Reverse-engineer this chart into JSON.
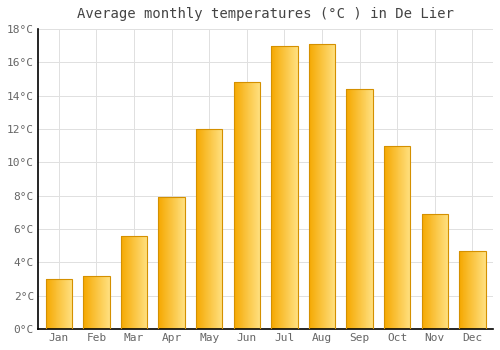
{
  "title": "Average monthly temperatures (°C ) in De Lier",
  "months": [
    "Jan",
    "Feb",
    "Mar",
    "Apr",
    "May",
    "Jun",
    "Jul",
    "Aug",
    "Sep",
    "Oct",
    "Nov",
    "Dec"
  ],
  "values": [
    3.0,
    3.2,
    5.6,
    7.9,
    12.0,
    14.8,
    17.0,
    17.1,
    14.4,
    11.0,
    6.9,
    4.7
  ],
  "bar_color_left": "#F5A800",
  "bar_color_right": "#FFE080",
  "bar_edge_color": "#D49000",
  "ylim": [
    0,
    18
  ],
  "ytick_step": 2,
  "background_color": "#FFFFFF",
  "grid_color": "#E0E0E0",
  "title_fontsize": 10,
  "tick_fontsize": 8,
  "left_spine_color": "#000000",
  "bottom_spine_color": "#000000"
}
